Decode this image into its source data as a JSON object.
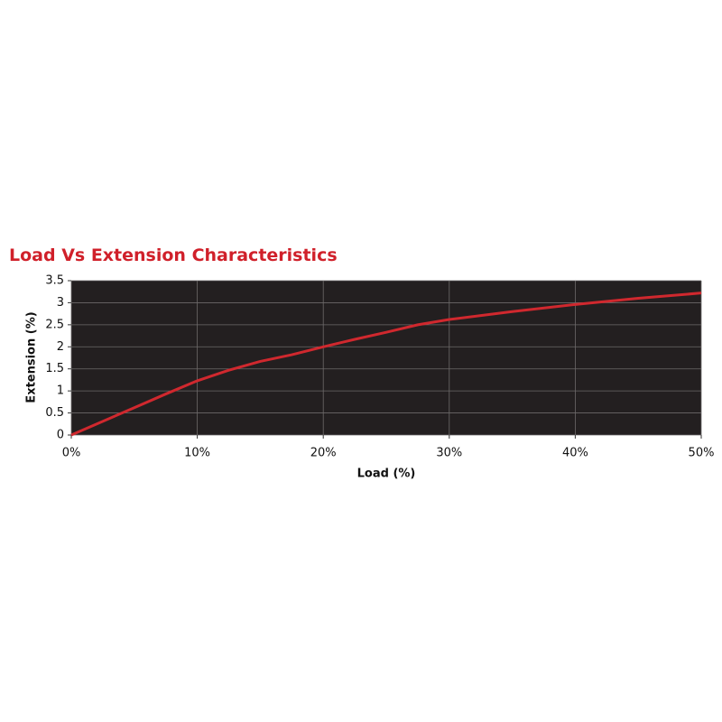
{
  "chart_data": {
    "type": "line",
    "title": "Load Vs Extension Characteristics",
    "x_label": "Load (%)",
    "y_label": "Extension (%)",
    "x": [
      0,
      5,
      7.5,
      10,
      12.5,
      15,
      17.5,
      20,
      22.5,
      25,
      27.5,
      30,
      35,
      40,
      45,
      50
    ],
    "series": [
      {
        "name": "Extension",
        "color": "#d0282e",
        "values": [
          0,
          0.62,
          0.93,
          1.23,
          1.47,
          1.67,
          1.82,
          2.0,
          2.17,
          2.33,
          2.5,
          2.62,
          2.8,
          2.96,
          3.1,
          3.22
        ]
      }
    ],
    "xlim": [
      0,
      50
    ],
    "xticks": [
      {
        "value": 0,
        "label": "0%"
      },
      {
        "value": 10,
        "label": "10%"
      },
      {
        "value": 20,
        "label": "20%"
      },
      {
        "value": 30,
        "label": "30%"
      },
      {
        "value": 40,
        "label": "40%"
      },
      {
        "value": 50,
        "label": "50%"
      }
    ],
    "ylim": [
      0,
      3.5
    ],
    "yticks": [
      0,
      0.5,
      1,
      1.5,
      2,
      2.5,
      3,
      3.5
    ],
    "grid": true,
    "background": "#231f20"
  }
}
